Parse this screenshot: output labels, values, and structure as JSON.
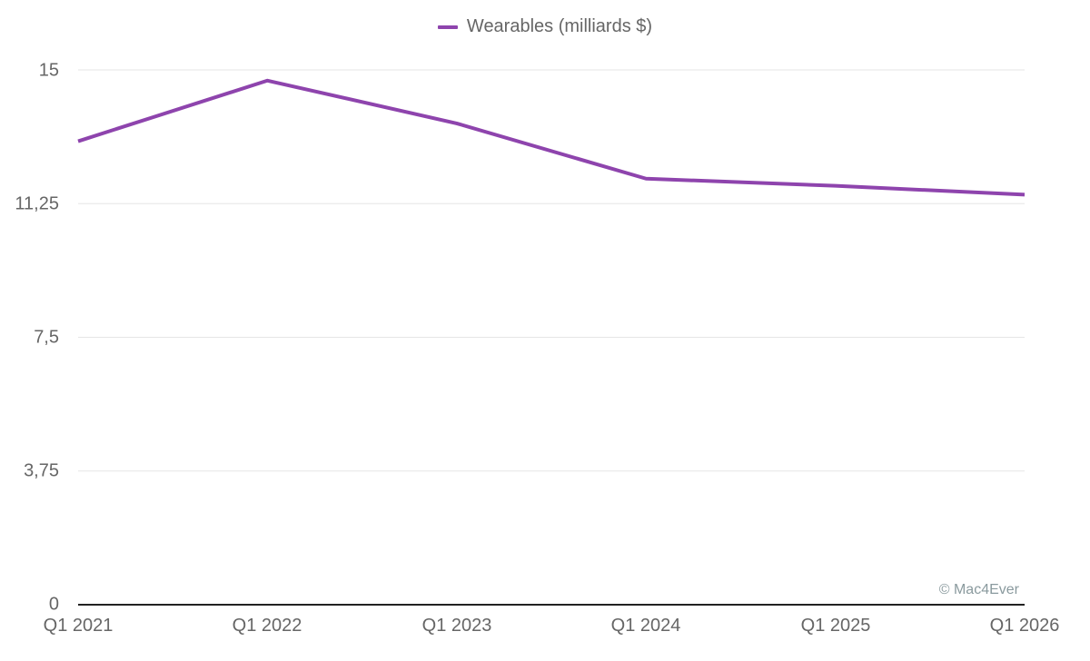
{
  "chart_data": {
    "type": "line",
    "title": "",
    "xlabel": "",
    "ylabel": "",
    "categories": [
      "Q1 2021",
      "Q1 2022",
      "Q1 2023",
      "Q1 2024",
      "Q1 2025",
      "Q1 2026"
    ],
    "series": [
      {
        "name": "Wearables (milliards $)",
        "color": "#8e44ad",
        "values": [
          13.0,
          14.7,
          13.5,
          11.95,
          11.75,
          11.5
        ]
      }
    ],
    "ylim": [
      0,
      15
    ],
    "yticks": [
      0,
      3.75,
      7.5,
      11.25,
      15
    ],
    "ytick_labels": [
      "0",
      "3,75",
      "7,5",
      "11,25",
      "15"
    ],
    "grid": true,
    "legend_position": "top-center",
    "annotations": [
      "© Mac4Ever"
    ]
  },
  "legend": {
    "label": "Wearables (milliards $)"
  },
  "axis": {
    "y_labels": [
      "15",
      "11,25",
      "7,5",
      "3,75",
      "0"
    ],
    "x_labels": [
      "Q1 2021",
      "Q1 2022",
      "Q1 2023",
      "Q1 2024",
      "Q1 2025",
      "Q1 2026"
    ]
  },
  "credit": "© Mac4Ever"
}
